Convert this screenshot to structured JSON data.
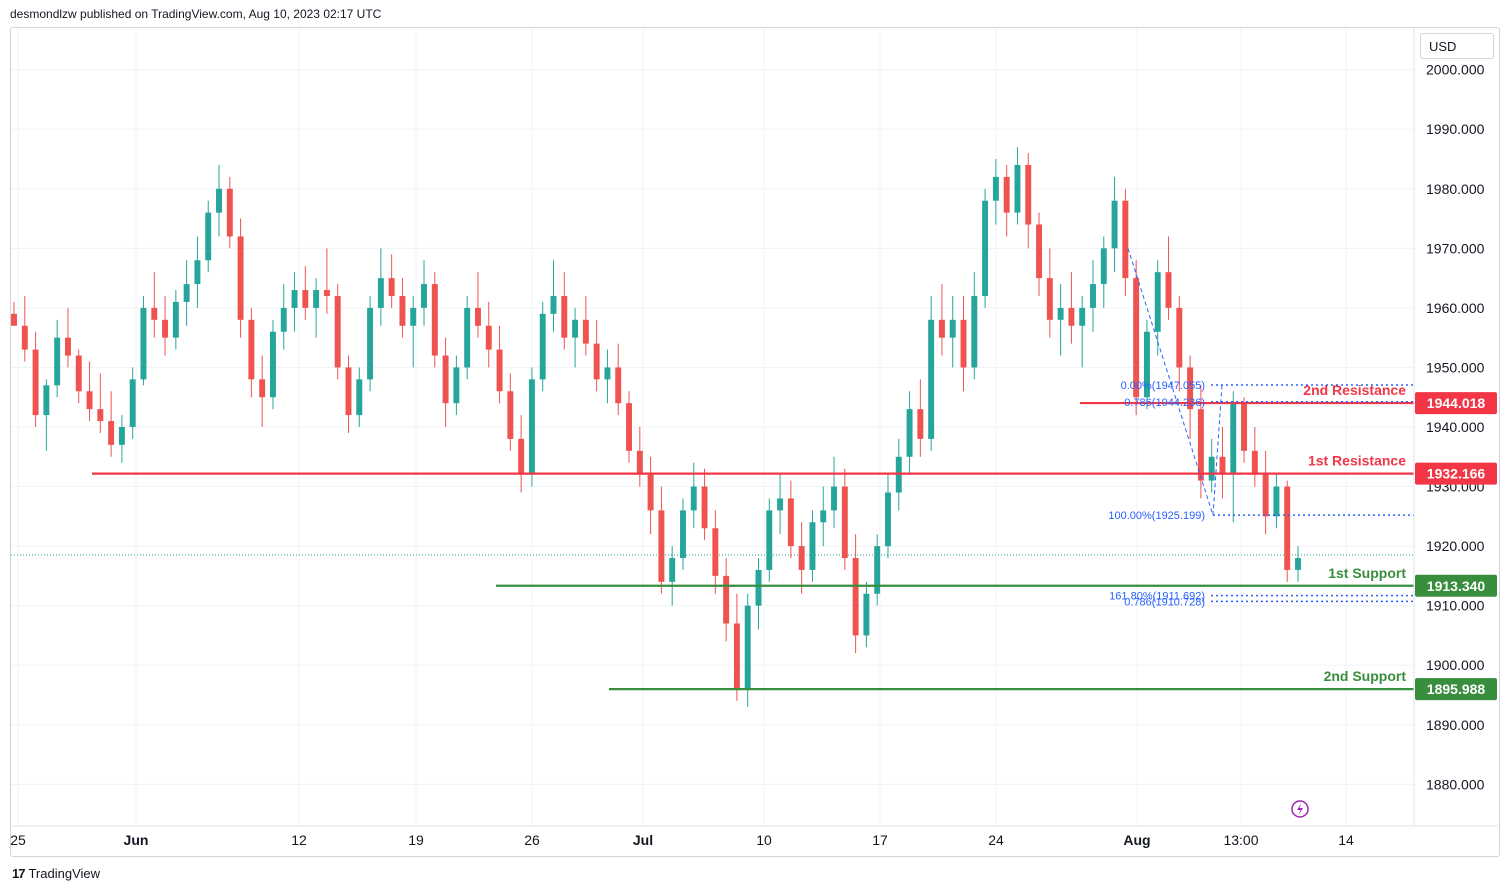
{
  "header": {
    "published": "desmondlzw published on TradingView.com, Aug 10, 2023 02:17 UTC"
  },
  "footer": {
    "brand": "TradingView",
    "logo_icon": "tradingview-logo-icon"
  },
  "currency_button": "USD",
  "colors": {
    "up": "#26a69a",
    "down": "#ef5350",
    "resistance": "#f23645",
    "support": "#388e3c",
    "fib": "#2962ff",
    "grid": "#f0f3fa"
  },
  "chart_data": {
    "type": "candlestick",
    "y_axis": {
      "ylim": [
        1873,
        2007
      ],
      "ticks": [
        "2000.000",
        "1990.000",
        "1980.000",
        "1970.000",
        "1960.000",
        "1950.000",
        "1940.000",
        "1930.000",
        "1920.000",
        "1910.000",
        "1900.000",
        "1890.000",
        "1880.000"
      ],
      "tick_values": [
        2000,
        1990,
        1980,
        1970,
        1960,
        1950,
        1940,
        1930,
        1920,
        1910,
        1900,
        1890,
        1880
      ]
    },
    "x_axis": {
      "labels": [
        "25",
        "Jun",
        "12",
        "19",
        "26",
        "Jul",
        "10",
        "17",
        "24",
        "Aug",
        "13:00",
        "14"
      ],
      "bold_labels": [
        "Jun",
        "Jul",
        "Aug"
      ]
    },
    "current_price": 1918.5,
    "levels": [
      {
        "name": "2nd Resistance",
        "value": 1944.018,
        "value_label": "1944.018",
        "kind": "resistance"
      },
      {
        "name": "1st Resistance",
        "value": 1932.166,
        "value_label": "1932.166",
        "kind": "resistance"
      },
      {
        "name": "1st Support",
        "value": 1913.34,
        "value_label": "1913.340",
        "kind": "support"
      },
      {
        "name": "2nd Support",
        "value": 1895.988,
        "value_label": "1895.988",
        "kind": "support"
      }
    ],
    "fib_labels": [
      {
        "text": "0.00%(1947.055)",
        "value": 1947.055
      },
      {
        "text": "0.786(1944.236)",
        "value": 1944.236
      },
      {
        "text": "100.00%(1925.199)",
        "value": 1925.199
      },
      {
        "text": "161.80%(1911.692)",
        "value": 1911.692
      },
      {
        "text": "0.786(1910.728)",
        "value": 1910.728
      }
    ],
    "candles": [
      [
        1959,
        1961,
        1957,
        1957
      ],
      [
        1957,
        1962,
        1951,
        1953
      ],
      [
        1953,
        1956,
        1940,
        1942
      ],
      [
        1942,
        1948,
        1936,
        1947
      ],
      [
        1947,
        1958,
        1945,
        1955
      ],
      [
        1955,
        1960,
        1950,
        1952
      ],
      [
        1952,
        1953,
        1944,
        1946
      ],
      [
        1946,
        1951,
        1941,
        1943
      ],
      [
        1943,
        1949,
        1939,
        1941
      ],
      [
        1941,
        1946,
        1935,
        1937
      ],
      [
        1937,
        1942,
        1934,
        1940
      ],
      [
        1940,
        1950,
        1938,
        1948
      ],
      [
        1948,
        1962,
        1947,
        1960
      ],
      [
        1960,
        1966,
        1955,
        1958
      ],
      [
        1958,
        1962,
        1952,
        1955
      ],
      [
        1955,
        1963,
        1953,
        1961
      ],
      [
        1961,
        1968,
        1957,
        1964
      ],
      [
        1964,
        1972,
        1960,
        1968
      ],
      [
        1968,
        1978,
        1966,
        1976
      ],
      [
        1976,
        1984,
        1972,
        1980
      ],
      [
        1980,
        1982,
        1970,
        1972
      ],
      [
        1972,
        1975,
        1955,
        1958
      ],
      [
        1958,
        1960,
        1945,
        1948
      ],
      [
        1948,
        1952,
        1940,
        1945
      ],
      [
        1945,
        1958,
        1943,
        1956
      ],
      [
        1956,
        1964,
        1953,
        1960
      ],
      [
        1960,
        1966,
        1956,
        1963
      ],
      [
        1963,
        1967,
        1958,
        1960
      ],
      [
        1960,
        1965,
        1955,
        1963
      ],
      [
        1963,
        1970,
        1959,
        1962
      ],
      [
        1962,
        1964,
        1948,
        1950
      ],
      [
        1950,
        1952,
        1939,
        1942
      ],
      [
        1942,
        1950,
        1940,
        1948
      ],
      [
        1948,
        1962,
        1946,
        1960
      ],
      [
        1960,
        1970,
        1957,
        1965
      ],
      [
        1965,
        1969,
        1960,
        1962
      ],
      [
        1962,
        1965,
        1955,
        1957
      ],
      [
        1957,
        1962,
        1950,
        1960
      ],
      [
        1960,
        1968,
        1957,
        1964
      ],
      [
        1964,
        1966,
        1950,
        1952
      ],
      [
        1952,
        1955,
        1940,
        1944
      ],
      [
        1944,
        1952,
        1942,
        1950
      ],
      [
        1950,
        1962,
        1948,
        1960
      ],
      [
        1960,
        1966,
        1955,
        1957
      ],
      [
        1957,
        1961,
        1950,
        1953
      ],
      [
        1953,
        1957,
        1944,
        1946
      ],
      [
        1946,
        1949,
        1936,
        1938
      ],
      [
        1938,
        1942,
        1929,
        1932
      ],
      [
        1932,
        1950,
        1930,
        1948
      ],
      [
        1948,
        1961,
        1946,
        1959
      ],
      [
        1959,
        1968,
        1956,
        1962
      ],
      [
        1962,
        1966,
        1953,
        1955
      ],
      [
        1955,
        1960,
        1950,
        1958
      ],
      [
        1958,
        1962,
        1952,
        1954
      ],
      [
        1954,
        1958,
        1946,
        1948
      ],
      [
        1948,
        1953,
        1944,
        1950
      ],
      [
        1950,
        1954,
        1942,
        1944
      ],
      [
        1944,
        1946,
        1934,
        1936
      ],
      [
        1936,
        1940,
        1930,
        1932
      ],
      [
        1932,
        1935,
        1922,
        1926
      ],
      [
        1926,
        1930,
        1912,
        1914
      ],
      [
        1914,
        1920,
        1910,
        1918
      ],
      [
        1918,
        1928,
        1916,
        1926
      ],
      [
        1926,
        1934,
        1923,
        1930
      ],
      [
        1930,
        1933,
        1921,
        1923
      ],
      [
        1923,
        1926,
        1912,
        1915
      ],
      [
        1915,
        1918,
        1904,
        1907
      ],
      [
        1907,
        1912,
        1894,
        1896
      ],
      [
        1896,
        1912,
        1893,
        1910
      ],
      [
        1910,
        1918,
        1906,
        1916
      ],
      [
        1916,
        1928,
        1914,
        1926
      ],
      [
        1926,
        1932,
        1922,
        1928
      ],
      [
        1928,
        1931,
        1918,
        1920
      ],
      [
        1920,
        1924,
        1912,
        1916
      ],
      [
        1916,
        1926,
        1914,
        1924
      ],
      [
        1924,
        1930,
        1920,
        1926
      ],
      [
        1926,
        1935,
        1923,
        1930
      ],
      [
        1930,
        1933,
        1916,
        1918
      ],
      [
        1918,
        1922,
        1902,
        1905
      ],
      [
        1905,
        1914,
        1903,
        1912
      ],
      [
        1912,
        1922,
        1910,
        1920
      ],
      [
        1920,
        1932,
        1918,
        1929
      ],
      [
        1929,
        1938,
        1926,
        1935
      ],
      [
        1935,
        1946,
        1932,
        1943
      ],
      [
        1943,
        1948,
        1935,
        1938
      ],
      [
        1938,
        1962,
        1936,
        1958
      ],
      [
        1958,
        1964,
        1952,
        1955
      ],
      [
        1955,
        1962,
        1950,
        1958
      ],
      [
        1958,
        1962,
        1946,
        1950
      ],
      [
        1950,
        1966,
        1948,
        1962
      ],
      [
        1962,
        1980,
        1960,
        1978
      ],
      [
        1978,
        1985,
        1974,
        1982
      ],
      [
        1982,
        1984,
        1972,
        1976
      ],
      [
        1976,
        1987,
        1974,
        1984
      ],
      [
        1984,
        1986,
        1970,
        1974
      ],
      [
        1974,
        1976,
        1962,
        1965
      ],
      [
        1965,
        1970,
        1955,
        1958
      ],
      [
        1958,
        1964,
        1952,
        1960
      ],
      [
        1960,
        1966,
        1954,
        1957
      ],
      [
        1957,
        1962,
        1950,
        1960
      ],
      [
        1960,
        1968,
        1956,
        1964
      ],
      [
        1964,
        1972,
        1960,
        1970
      ],
      [
        1970,
        1982,
        1966,
        1978
      ],
      [
        1978,
        1980,
        1962,
        1965
      ],
      [
        1965,
        1968,
        1942,
        1945
      ],
      [
        1945,
        1958,
        1943,
        1956
      ],
      [
        1956,
        1968,
        1952,
        1966
      ],
      [
        1966,
        1972,
        1958,
        1960
      ],
      [
        1960,
        1962,
        1946,
        1950
      ],
      [
        1950,
        1952,
        1938,
        1943
      ],
      [
        1943,
        1947,
        1928,
        1931
      ],
      [
        1931,
        1938,
        1929,
        1935
      ],
      [
        1935,
        1940,
        1928,
        1932
      ],
      [
        1932,
        1946,
        1924,
        1944
      ],
      [
        1944,
        1945,
        1934,
        1936
      ],
      [
        1936,
        1940,
        1930,
        1932
      ],
      [
        1932,
        1936,
        1922,
        1925
      ],
      [
        1925,
        1932,
        1923,
        1930
      ],
      [
        1930,
        1931,
        1914,
        1916
      ],
      [
        1916,
        1920,
        1914,
        1918
      ]
    ],
    "grid": true
  }
}
